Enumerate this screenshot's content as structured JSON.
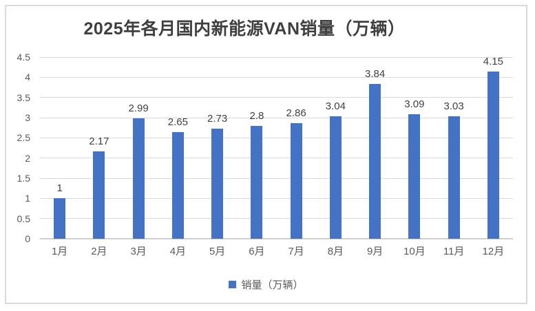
{
  "window": {
    "background": "#FFFFFF"
  },
  "chart": {
    "colors": {
      "bar": "#4472C4",
      "gridline": "#D9D9D9",
      "baseline": "#D0D0D0",
      "frame_border": "#D9D9D9",
      "title_text": "#3F3F3F",
      "data_label_text": "#3F3F3F",
      "axis_label_text": "#595959",
      "legend_text": "#595959",
      "background": "#FFFFFF"
    }
  },
  "chart_data": {
    "type": "bar",
    "title": "2025年各月国内新能源VAN销量（万辆）",
    "categories": [
      "1月",
      "2月",
      "3月",
      "4月",
      "5月",
      "6月",
      "7月",
      "8月",
      "9月",
      "10月",
      "11月",
      "12月"
    ],
    "series": [
      {
        "name": "销量（万辆）",
        "values": [
          1,
          2.17,
          2.99,
          2.65,
          2.73,
          2.8,
          2.86,
          3.04,
          3.84,
          3.09,
          3.03,
          4.15
        ]
      }
    ],
    "data_labels": [
      "1",
      "2.17",
      "2.99",
      "2.65",
      "2.73",
      "2.8",
      "2.86",
      "3.04",
      "3.84",
      "3.09",
      "3.03",
      "4.15"
    ],
    "xlabel": "",
    "ylabel": "",
    "ylim": [
      0,
      4.5
    ],
    "ytick_step": 0.5,
    "ytick_labels": [
      "0",
      "0.5",
      "1",
      "1.5",
      "2",
      "2.5",
      "3",
      "3.5",
      "4",
      "4.5"
    ],
    "grid": true,
    "legend": {
      "label": "销量（万辆）",
      "position": "bottom"
    }
  }
}
